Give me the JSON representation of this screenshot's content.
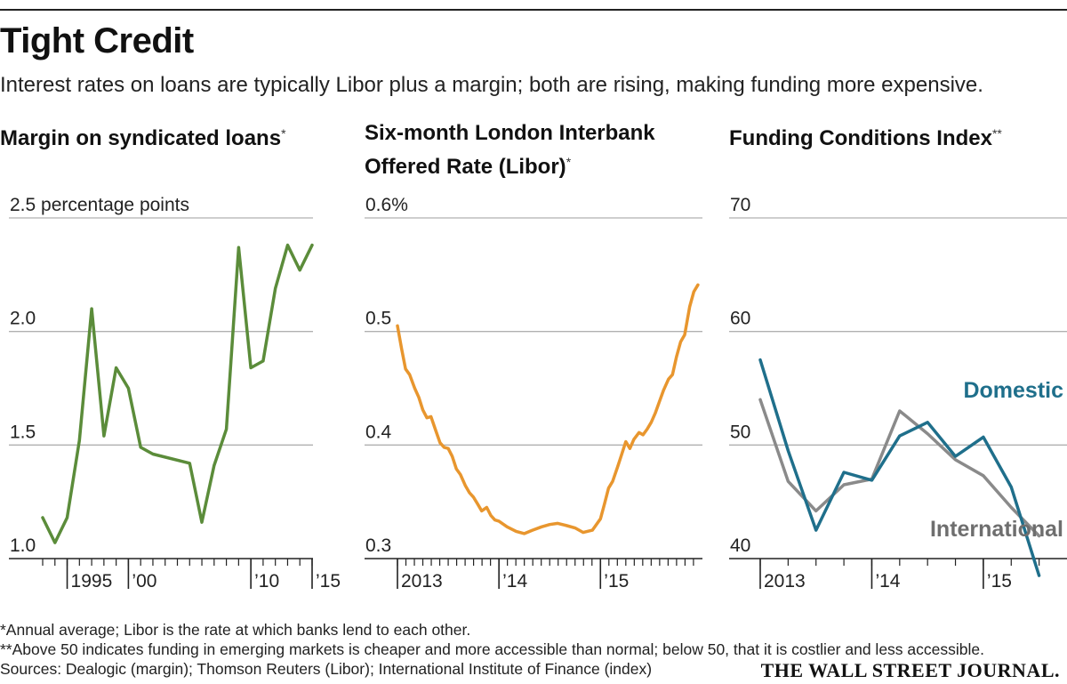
{
  "header": {
    "title": "Tight Credit",
    "subtitle": "Interest rates on loans are typically Libor plus a margin; both are rising, making funding more expensive."
  },
  "colors": {
    "margin_line": "#5b8c3a",
    "libor_line": "#e8962e",
    "domestic_line": "#1f6f8b",
    "international_line": "#8a8a8a",
    "grid": "#b0b0b0"
  },
  "footnotes": {
    "note1": "*Annual average; Libor is the rate at which banks lend to each other.",
    "note2": "**Above 50 indicates funding in emerging markets is cheaper and more accessible than normal; below 50, that it is costlier and less accessible.",
    "sources": "Sources: Dealogic (margin); Thomson Reuters (Libor); International Institute of Finance (index)"
  },
  "publisher": "THE WALL STREET JOURNAL.",
  "chart_data": [
    {
      "type": "line",
      "title": "Margin on syndicated loans",
      "title_mark": "*",
      "unit_label": "2.5 percentage points",
      "ylim": [
        1.0,
        2.5
      ],
      "y_ticks": [
        2.5,
        2.0,
        1.5,
        1.0
      ],
      "y_tick_labels": [
        "",
        "2.0",
        "1.5",
        "1.0"
      ],
      "xlim": [
        1993,
        2015
      ],
      "x_ticks": [
        {
          "x": 1995,
          "label": "1995"
        },
        {
          "x": 2000,
          "label": "’00"
        },
        {
          "x": 2010,
          "label": "’10"
        },
        {
          "x": 2015,
          "label": "’15"
        }
      ],
      "x": [
        1993,
        1994,
        1995,
        1996,
        1997,
        1998,
        1999,
        2000,
        2001,
        2002,
        2005,
        2006,
        2007,
        2008,
        2009,
        2010,
        2011,
        2012,
        2013,
        2014,
        2015
      ],
      "values": [
        1.18,
        1.07,
        1.18,
        1.52,
        2.1,
        1.54,
        1.84,
        1.75,
        1.49,
        1.46,
        1.42,
        1.16,
        1.41,
        1.57,
        2.37,
        1.84,
        1.87,
        2.19,
        2.38,
        2.27,
        2.38
      ]
    },
    {
      "type": "line",
      "title": "Six-month London Interbank Offered Rate (Libor)",
      "title_line1": "Six-month London Interbank",
      "title_line2": "Offered Rate (Libor)",
      "title_mark": "*",
      "unit_label": "0.6%",
      "ylim": [
        0.3,
        0.6
      ],
      "y_ticks": [
        0.6,
        0.5,
        0.4,
        0.3
      ],
      "y_tick_labels": [
        "",
        "0.5",
        "0.4",
        "0.3"
      ],
      "xlim": [
        2013.0,
        2015.97
      ],
      "x_ticks": [
        {
          "x": 2013.0,
          "label": "2013"
        },
        {
          "x": 2014.0,
          "label": "’14"
        },
        {
          "x": 2015.0,
          "label": "’15"
        }
      ],
      "x": [
        2013.0,
        2013.04,
        2013.08,
        2013.12,
        2013.17,
        2013.21,
        2013.25,
        2013.29,
        2013.33,
        2013.38,
        2013.42,
        2013.46,
        2013.5,
        2013.54,
        2013.58,
        2013.62,
        2013.67,
        2013.71,
        2013.75,
        2013.79,
        2013.83,
        2013.88,
        2013.92,
        2013.96,
        2014.0,
        2014.08,
        2014.17,
        2014.25,
        2014.33,
        2014.42,
        2014.5,
        2014.58,
        2014.67,
        2014.75,
        2014.83,
        2014.92,
        2015.0,
        2015.04,
        2015.08,
        2015.12,
        2015.17,
        2015.21,
        2015.25,
        2015.29,
        2015.33,
        2015.38,
        2015.42,
        2015.46,
        2015.5,
        2015.54,
        2015.58,
        2015.62,
        2015.67,
        2015.71,
        2015.75,
        2015.79,
        2015.83,
        2015.88,
        2015.92,
        2015.96
      ],
      "values": [
        0.505,
        0.485,
        0.467,
        0.462,
        0.45,
        0.442,
        0.431,
        0.424,
        0.425,
        0.412,
        0.402,
        0.398,
        0.397,
        0.39,
        0.379,
        0.374,
        0.364,
        0.358,
        0.354,
        0.348,
        0.342,
        0.345,
        0.338,
        0.334,
        0.333,
        0.328,
        0.324,
        0.322,
        0.325,
        0.328,
        0.33,
        0.331,
        0.329,
        0.327,
        0.323,
        0.325,
        0.335,
        0.348,
        0.362,
        0.368,
        0.381,
        0.392,
        0.403,
        0.397,
        0.405,
        0.411,
        0.409,
        0.414,
        0.42,
        0.428,
        0.438,
        0.448,
        0.458,
        0.462,
        0.478,
        0.491,
        0.497,
        0.522,
        0.535,
        0.541
      ]
    },
    {
      "type": "line",
      "title": "Funding Conditions Index",
      "title_mark": "**",
      "unit_label": "70",
      "ylim": [
        40,
        70
      ],
      "y_ticks": [
        70,
        60,
        50,
        40
      ],
      "y_tick_labels": [
        "70",
        "60",
        "50",
        "40"
      ],
      "xlim": [
        2013.0,
        2015.75
      ],
      "x_ticks": [
        {
          "x": 2013.0,
          "label": "2013"
        },
        {
          "x": 2014.0,
          "label": "’14"
        },
        {
          "x": 2015.0,
          "label": "’15"
        }
      ],
      "x": [
        2013.0,
        2013.25,
        2013.5,
        2013.75,
        2014.0,
        2014.25,
        2014.5,
        2014.75,
        2015.0,
        2015.25,
        2015.5
      ],
      "series": [
        {
          "name": "Domestic",
          "values": [
            57.5,
            49.5,
            42.5,
            47.6,
            46.9,
            50.8,
            52.0,
            49.0,
            50.7,
            46.3,
            38.5
          ]
        },
        {
          "name": "International",
          "values": [
            54.0,
            46.8,
            44.2,
            46.5,
            47.0,
            53.0,
            51.0,
            48.7,
            47.3,
            44.5,
            42.0
          ]
        }
      ]
    }
  ]
}
